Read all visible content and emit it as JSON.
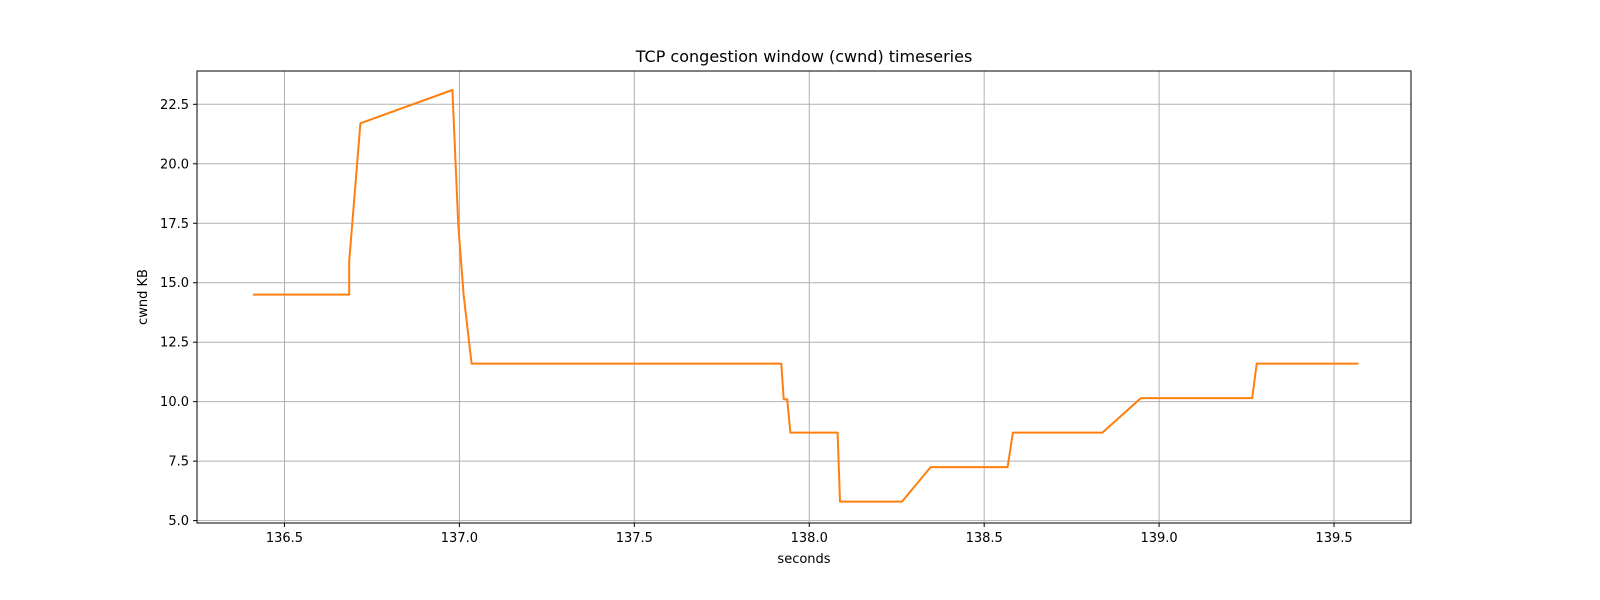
{
  "chart_data": {
    "type": "line",
    "title": "TCP congestion window (cwnd) timeseries",
    "xlabel": "seconds",
    "ylabel": "cwnd KB",
    "xlim": [
      136.25,
      139.72
    ],
    "ylim": [
      4.9,
      23.9
    ],
    "grid": true,
    "x_ticks": [
      136.5,
      137.0,
      137.5,
      138.0,
      138.5,
      139.0,
      139.5
    ],
    "x_tick_labels": [
      "136.5",
      "137.0",
      "137.5",
      "138.0",
      "138.5",
      "139.0",
      "139.5"
    ],
    "y_ticks": [
      5.0,
      7.5,
      10.0,
      12.5,
      15.0,
      17.5,
      20.0,
      22.5
    ],
    "y_tick_labels": [
      "5.0",
      "7.5",
      "10.0",
      "12.5",
      "15.0",
      "17.5",
      "20.0",
      "22.5"
    ],
    "series": [
      {
        "name": "cwnd",
        "color": "#ff7f0e",
        "x": [
          136.41,
          136.685,
          136.685,
          136.717,
          136.98,
          136.997,
          137.012,
          137.035,
          137.92,
          137.927,
          137.937,
          137.946,
          138.081,
          138.088,
          138.265,
          138.347,
          138.567,
          138.582,
          138.838,
          138.948,
          139.266,
          139.279,
          139.57
        ],
        "y": [
          14.5,
          14.5,
          15.9,
          21.7,
          23.1,
          17.4,
          14.5,
          11.6,
          11.6,
          10.1,
          10.1,
          8.7,
          8.7,
          5.8,
          5.8,
          7.25,
          7.25,
          8.7,
          8.7,
          10.15,
          10.15,
          11.6,
          11.6
        ]
      }
    ]
  }
}
